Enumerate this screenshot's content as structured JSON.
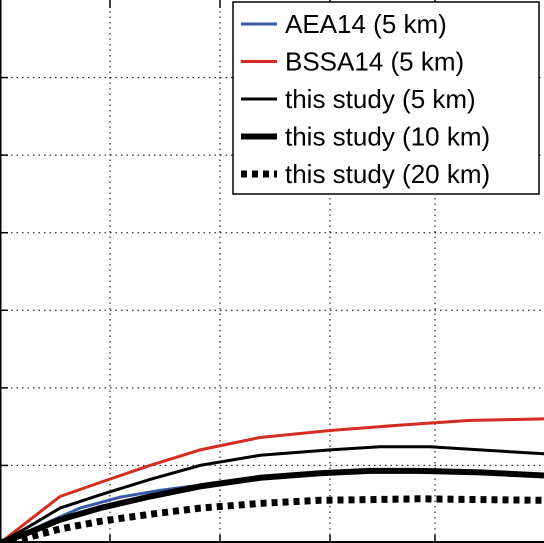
{
  "chart_data": {
    "type": "line",
    "title": "",
    "xlabel": "",
    "ylabel": "",
    "xlim": [
      0,
      5.44
    ],
    "ylim": [
      0,
      7
    ],
    "xgrid": [
      1.1,
      2.2,
      3.3,
      4.35
    ],
    "ygrid": [
      1,
      2,
      3,
      4,
      5,
      6
    ],
    "grid": true,
    "legend_position": "top-right",
    "series": [
      {
        "name": "AEA14 (5 km)",
        "color": "#3a5aa8",
        "style": "solid",
        "weight": "thin",
        "x": [
          0,
          0.2,
          0.5,
          0.8,
          1.2,
          1.6,
          1.9,
          2.15
        ],
        "y": [
          0,
          0.1,
          0.28,
          0.45,
          0.59,
          0.68,
          0.73,
          0.75
        ]
      },
      {
        "name": "BSSA14 (5 km)",
        "color": "#d42b23",
        "style": "solid",
        "weight": "thin",
        "x": [
          0,
          0.3,
          0.6,
          1.0,
          1.5,
          2.0,
          2.6,
          3.3,
          4.0,
          4.7,
          5.44
        ],
        "y": [
          0,
          0.3,
          0.6,
          0.78,
          1.0,
          1.2,
          1.36,
          1.45,
          1.52,
          1.58,
          1.6
        ]
      },
      {
        "name": "this study (5 km)",
        "color": "#000000",
        "style": "solid",
        "weight": "thin",
        "x": [
          0,
          0.3,
          0.6,
          1.0,
          1.5,
          2.0,
          2.6,
          3.3,
          3.8,
          4.3,
          4.8,
          5.44
        ],
        "y": [
          0,
          0.22,
          0.45,
          0.62,
          0.82,
          1.0,
          1.13,
          1.2,
          1.24,
          1.24,
          1.2,
          1.15
        ]
      },
      {
        "name": "this study (10 km)",
        "color": "#000000",
        "style": "solid",
        "weight": "thick",
        "x": [
          0,
          0.3,
          0.6,
          1.0,
          1.5,
          2.0,
          2.6,
          3.2,
          3.7,
          4.2,
          4.8,
          5.44
        ],
        "y": [
          0,
          0.14,
          0.3,
          0.45,
          0.6,
          0.73,
          0.84,
          0.9,
          0.93,
          0.93,
          0.91,
          0.87
        ]
      },
      {
        "name": "this study (20 km)",
        "color": "#000000",
        "style": "dotted",
        "weight": "thick",
        "x": [
          0,
          0.3,
          0.6,
          1.0,
          1.5,
          2.0,
          2.6,
          3.2,
          3.7,
          4.2,
          4.8,
          5.44
        ],
        "y": [
          0,
          0.08,
          0.18,
          0.28,
          0.37,
          0.45,
          0.51,
          0.55,
          0.56,
          0.57,
          0.56,
          0.55
        ]
      }
    ]
  }
}
